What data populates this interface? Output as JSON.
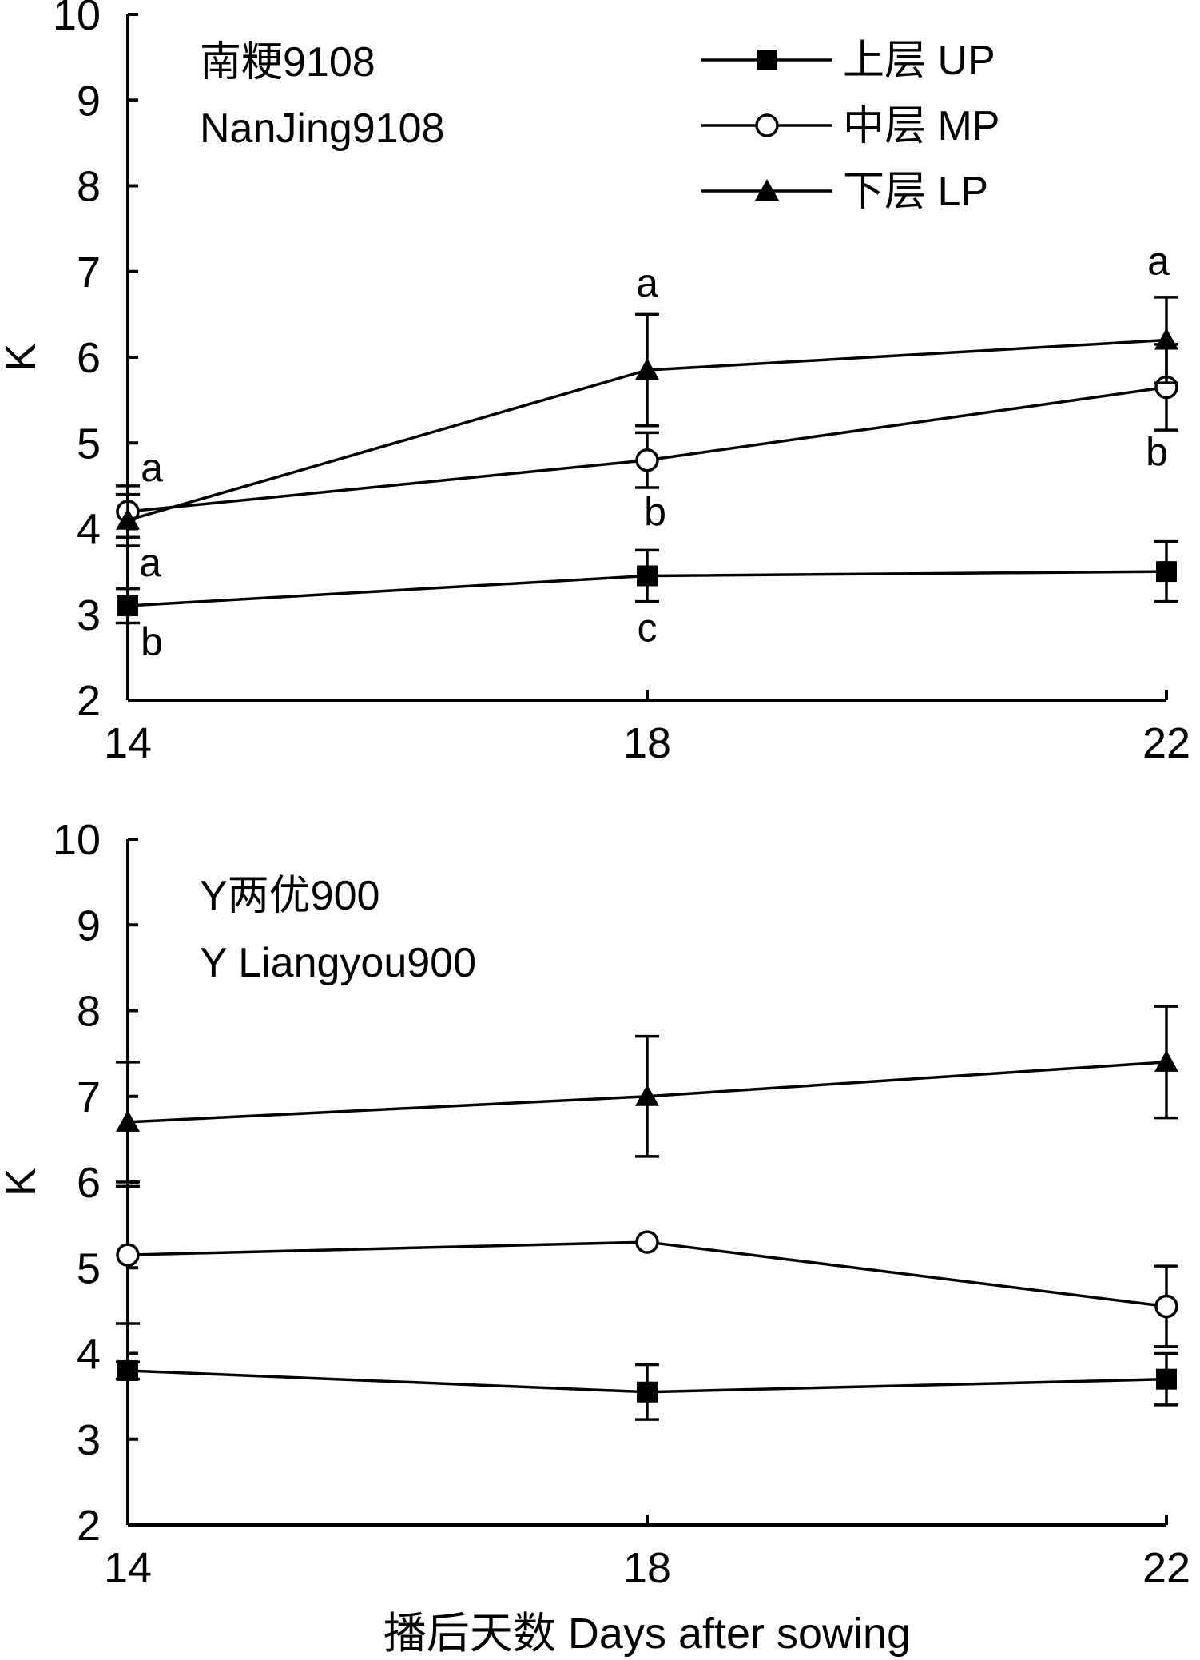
{
  "chart_data": [
    {
      "type": "line",
      "title": "南粳9108",
      "subtitle": "NanJing9108",
      "xlabel": "",
      "ylabel": "K",
      "x": [
        14,
        18,
        22
      ],
      "xticks": [
        "14",
        "18",
        "22"
      ],
      "ylim": [
        2,
        10
      ],
      "yticks": [
        "2",
        "3",
        "4",
        "5",
        "6",
        "7",
        "8",
        "9",
        "10"
      ],
      "grid": false,
      "legend_position": "top-right",
      "series": [
        {
          "name": "上层 UP",
          "marker": "filled-square",
          "values": [
            3.1,
            3.45,
            3.5
          ],
          "errors": [
            0.2,
            0.3,
            0.35
          ],
          "letters": [
            "b",
            "c",
            ""
          ]
        },
        {
          "name": "中层 MP",
          "marker": "open-circle",
          "values": [
            4.2,
            4.8,
            5.65
          ],
          "errors": [
            0.3,
            0.32,
            0.5
          ],
          "letters": [
            "a",
            "b",
            "b"
          ]
        },
        {
          "name": "下层 LP",
          "marker": "filled-triangle",
          "values": [
            4.1,
            5.85,
            6.2
          ],
          "errors": [
            0.3,
            0.65,
            0.5
          ],
          "letters": [
            "a",
            "a",
            "a"
          ]
        }
      ]
    },
    {
      "type": "line",
      "title": "Y两优900",
      "subtitle": "Y Liangyou900",
      "xlabel": "播后天数 Days after sowing",
      "ylabel": "K",
      "x": [
        14,
        18,
        22
      ],
      "xticks": [
        "14",
        "18",
        "22"
      ],
      "ylim": [
        2,
        10
      ],
      "yticks": [
        "2",
        "3",
        "4",
        "5",
        "6",
        "7",
        "8",
        "9",
        "10"
      ],
      "grid": false,
      "legend_position": "",
      "series": [
        {
          "name": "上层 UP",
          "marker": "filled-square",
          "values": [
            3.8,
            3.55,
            3.7
          ],
          "errors": [
            0.1,
            0.32,
            0.3
          ]
        },
        {
          "name": "中层 MP",
          "marker": "open-circle",
          "values": [
            5.15,
            5.3,
            4.55
          ],
          "errors": [
            0.8,
            0,
            0.47
          ]
        },
        {
          "name": "下层 LP",
          "marker": "filled-triangle",
          "values": [
            6.7,
            7.0,
            7.4
          ],
          "errors": [
            0.7,
            0.7,
            0.65
          ]
        }
      ]
    }
  ]
}
